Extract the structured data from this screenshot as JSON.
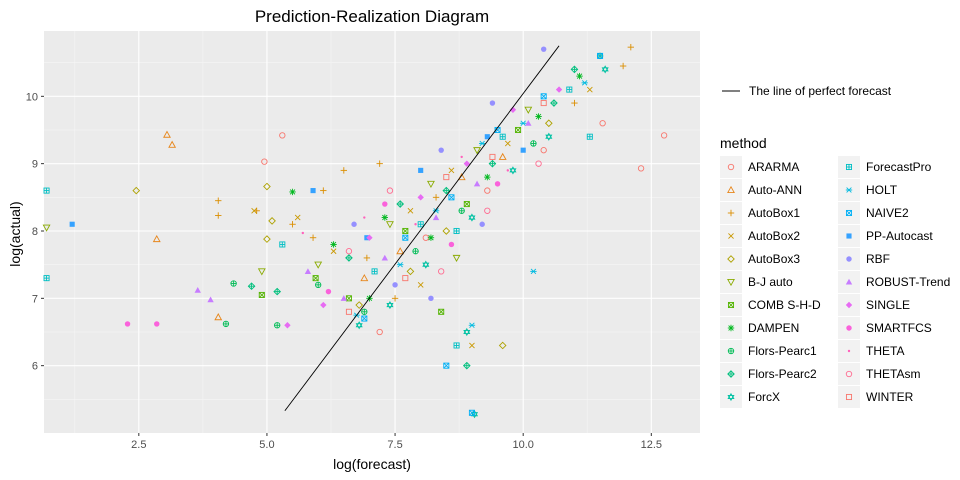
{
  "chart_data": {
    "type": "scatter",
    "title": "Prediction-Realization Diagram",
    "xlabel": "log(forecast)",
    "ylabel": "log(actual)",
    "xlim": [
      0.65,
      13.45
    ],
    "ylim": [
      5.0,
      10.97
    ],
    "xticks": [
      2.5,
      5.0,
      7.5,
      10.0,
      12.5
    ],
    "xtick_labels": [
      "2.5",
      "5.0",
      "7.5",
      "10.0",
      "12.5"
    ],
    "yticks": [
      6,
      7,
      8,
      9,
      10
    ],
    "ytick_labels": [
      "6",
      "7",
      "8",
      "9",
      "10"
    ],
    "grid": true,
    "background": "#ebebeb",
    "perfect_line": {
      "label": "The line of perfect forecast",
      "x": [
        5.35,
        10.7
      ],
      "y": [
        5.33,
        10.75
      ],
      "color": "#000000"
    },
    "legend": {
      "title": "method",
      "placement": "right",
      "columns": 2
    },
    "series": [
      {
        "name": "ARARMA",
        "color": "#F8766D",
        "shape": "circle-open",
        "points": [
          [
            5.3,
            9.42
          ],
          [
            4.95,
            9.03
          ],
          [
            12.75,
            9.42
          ],
          [
            12.3,
            8.93
          ],
          [
            11.55,
            9.6
          ],
          [
            9.3,
            8.6
          ],
          [
            8.1,
            7.9
          ],
          [
            7.2,
            6.5
          ],
          [
            10.4,
            9.2
          ]
        ]
      },
      {
        "name": "Auto-ANN",
        "color": "#E7861B",
        "shape": "triangle-open",
        "points": [
          [
            3.05,
            9.43
          ],
          [
            3.15,
            9.28
          ],
          [
            2.85,
            7.88
          ],
          [
            4.05,
            6.72
          ],
          [
            7.6,
            7.7
          ],
          [
            8.8,
            8.8
          ],
          [
            9.6,
            9.1
          ],
          [
            6.9,
            7.3
          ]
        ]
      },
      {
        "name": "AutoBox1",
        "color": "#DB8E00",
        "shape": "plus",
        "points": [
          [
            4.05,
            8.45
          ],
          [
            4.05,
            8.23
          ],
          [
            4.8,
            8.3
          ],
          [
            5.5,
            8.1
          ],
          [
            6.1,
            8.6
          ],
          [
            6.5,
            8.9
          ],
          [
            7.2,
            9.0
          ],
          [
            8.3,
            8.5
          ],
          [
            11.95,
            10.45
          ],
          [
            12.1,
            10.73
          ],
          [
            11.0,
            9.9
          ],
          [
            6.95,
            7.6
          ],
          [
            5.9,
            7.9
          ],
          [
            7.5,
            7.0
          ]
        ]
      },
      {
        "name": "AutoBox2",
        "color": "#C99800",
        "shape": "cross",
        "points": [
          [
            4.75,
            8.3
          ],
          [
            5.6,
            8.2
          ],
          [
            6.3,
            7.7
          ],
          [
            7.8,
            8.3
          ],
          [
            8.6,
            8.9
          ],
          [
            9.7,
            9.3
          ],
          [
            11.3,
            10.1
          ],
          [
            8.0,
            7.2
          ],
          [
            9.0,
            6.3
          ]
        ]
      },
      {
        "name": "AutoBox3",
        "color": "#AEA200",
        "shape": "diamond-open",
        "points": [
          [
            2.45,
            8.6
          ],
          [
            5.0,
            8.66
          ],
          [
            5.1,
            8.15
          ],
          [
            5.0,
            7.88
          ],
          [
            7.8,
            7.4
          ],
          [
            9.6,
            6.3
          ],
          [
            8.5,
            8.0
          ],
          [
            10.5,
            9.6
          ],
          [
            6.8,
            6.9
          ]
        ]
      },
      {
        "name": "B-J auto",
        "color": "#8AAB00",
        "shape": "triangle-down-open",
        "points": [
          [
            0.7,
            8.05
          ],
          [
            4.9,
            7.4
          ],
          [
            6.0,
            7.5
          ],
          [
            7.4,
            8.1
          ],
          [
            8.2,
            8.7
          ],
          [
            9.1,
            9.2
          ],
          [
            10.1,
            9.8
          ],
          [
            8.7,
            7.6
          ]
        ]
      },
      {
        "name": "COMB S-H-D",
        "color": "#53B400",
        "shape": "square-cross",
        "points": [
          [
            4.9,
            7.05
          ],
          [
            5.95,
            7.3
          ],
          [
            6.6,
            7.0
          ],
          [
            7.7,
            8.0
          ],
          [
            8.9,
            8.4
          ],
          [
            9.9,
            9.5
          ],
          [
            8.4,
            6.8
          ]
        ]
      },
      {
        "name": "DAMPEN",
        "color": "#00B81F",
        "shape": "asterisk",
        "points": [
          [
            5.5,
            8.58
          ],
          [
            6.3,
            7.8
          ],
          [
            7.3,
            8.2
          ],
          [
            8.2,
            7.9
          ],
          [
            9.3,
            8.8
          ],
          [
            10.3,
            9.7
          ],
          [
            11.1,
            10.3
          ],
          [
            7.0,
            7.0
          ]
        ]
      },
      {
        "name": "Flors-Pearc1",
        "color": "#00BC56",
        "shape": "circle-plus",
        "points": [
          [
            4.2,
            6.62
          ],
          [
            4.35,
            7.22
          ],
          [
            5.2,
            6.6
          ],
          [
            6.0,
            7.2
          ],
          [
            6.9,
            6.8
          ],
          [
            7.9,
            7.7
          ],
          [
            8.8,
            8.3
          ],
          [
            10.2,
            9.3
          ],
          [
            11.5,
            10.6
          ]
        ]
      },
      {
        "name": "Flors-Pearc2",
        "color": "#00BF7D",
        "shape": "diamond-plus",
        "points": [
          [
            4.7,
            7.18
          ],
          [
            5.2,
            7.1
          ],
          [
            6.6,
            7.6
          ],
          [
            7.6,
            8.4
          ],
          [
            8.5,
            8.6
          ],
          [
            9.4,
            9.0
          ],
          [
            10.6,
            9.9
          ],
          [
            11.0,
            10.4
          ],
          [
            8.9,
            6.0
          ]
        ]
      },
      {
        "name": "ForcX",
        "color": "#00C1A3",
        "shape": "star",
        "points": [
          [
            6.8,
            6.6
          ],
          [
            7.4,
            6.9
          ],
          [
            8.1,
            7.5
          ],
          [
            9.0,
            8.2
          ],
          [
            9.8,
            8.9
          ],
          [
            10.5,
            9.4
          ],
          [
            11.6,
            10.4
          ],
          [
            9.05,
            5.28
          ],
          [
            8.9,
            6.5
          ]
        ]
      },
      {
        "name": "ForecastPro",
        "color": "#00BFC4",
        "shape": "square-plus",
        "points": [
          [
            0.7,
            8.6
          ],
          [
            0.7,
            7.3
          ],
          [
            5.3,
            7.8
          ],
          [
            7.1,
            7.4
          ],
          [
            8.0,
            8.1
          ],
          [
            8.7,
            8.0
          ],
          [
            9.6,
            9.4
          ],
          [
            10.9,
            10.1
          ],
          [
            11.3,
            9.4
          ],
          [
            8.7,
            6.3
          ]
        ]
      },
      {
        "name": "HOLT",
        "color": "#00BAE0",
        "shape": "asterisk2",
        "points": [
          [
            6.75,
            6.75
          ],
          [
            7.6,
            7.5
          ],
          [
            8.3,
            8.3
          ],
          [
            9.2,
            9.3
          ],
          [
            10.0,
            9.6
          ],
          [
            10.2,
            7.4
          ],
          [
            11.2,
            10.2
          ],
          [
            9.0,
            6.6
          ]
        ]
      },
      {
        "name": "NAIVE2",
        "color": "#00B0F6",
        "shape": "square-x",
        "points": [
          [
            6.9,
            6.7
          ],
          [
            7.7,
            7.9
          ],
          [
            8.6,
            8.5
          ],
          [
            9.5,
            9.5
          ],
          [
            10.4,
            10.0
          ],
          [
            11.5,
            10.6
          ],
          [
            9.0,
            5.3
          ],
          [
            8.5,
            6.0
          ]
        ]
      },
      {
        "name": "PP-Autocast",
        "color": "#35A2FF",
        "shape": "square",
        "points": [
          [
            1.2,
            8.1
          ],
          [
            5.9,
            8.6
          ],
          [
            6.95,
            7.9
          ],
          [
            8.0,
            8.9
          ],
          [
            9.3,
            9.4
          ],
          [
            10.0,
            9.2
          ]
        ]
      },
      {
        "name": "RBF",
        "color": "#9590FF",
        "shape": "circle",
        "points": [
          [
            6.7,
            8.1
          ],
          [
            7.5,
            7.2
          ],
          [
            8.4,
            9.2
          ],
          [
            9.4,
            9.9
          ],
          [
            10.4,
            10.7
          ],
          [
            8.2,
            7.0
          ],
          [
            9.2,
            8.1
          ]
        ]
      },
      {
        "name": "ROBUST-Trend",
        "color": "#C77CFF",
        "shape": "triangle",
        "points": [
          [
            3.65,
            7.12
          ],
          [
            3.9,
            6.98
          ],
          [
            5.8,
            7.4
          ],
          [
            6.5,
            7.0
          ],
          [
            7.3,
            7.6
          ],
          [
            8.3,
            8.2
          ],
          [
            9.1,
            8.7
          ],
          [
            10.1,
            9.6
          ]
        ]
      },
      {
        "name": "SINGLE",
        "color": "#E76BF3",
        "shape": "diamond",
        "points": [
          [
            5.4,
            6.6
          ],
          [
            6.1,
            6.9
          ],
          [
            7.0,
            7.9
          ],
          [
            8.0,
            8.5
          ],
          [
            8.9,
            9.0
          ],
          [
            9.8,
            9.8
          ],
          [
            10.7,
            10.1
          ]
        ]
      },
      {
        "name": "SMARTFCS",
        "color": "#FA62DB",
        "shape": "circle",
        "points": [
          [
            2.28,
            6.62
          ],
          [
            2.85,
            6.62
          ],
          [
            6.2,
            7.1
          ],
          [
            7.3,
            8.4
          ],
          [
            8.6,
            7.8
          ],
          [
            9.5,
            8.7
          ]
        ]
      },
      {
        "name": "THETA",
        "color": "#FF62BC",
        "shape": "dot",
        "points": [
          [
            5.7,
            7.97
          ],
          [
            6.9,
            8.2
          ],
          [
            7.9,
            8.1
          ],
          [
            8.8,
            9.1
          ],
          [
            9.7,
            8.9
          ]
        ]
      },
      {
        "name": "THETAsm",
        "color": "#FF6C91",
        "shape": "circle-open",
        "points": [
          [
            6.6,
            7.7
          ],
          [
            7.4,
            8.6
          ],
          [
            8.4,
            7.4
          ],
          [
            9.3,
            8.3
          ],
          [
            10.3,
            9.0
          ]
        ]
      },
      {
        "name": "WINTER",
        "color": "#F8766D",
        "shape": "square-open",
        "points": [
          [
            6.6,
            6.8
          ],
          [
            7.7,
            7.3
          ],
          [
            8.5,
            8.8
          ],
          [
            9.4,
            9.1
          ],
          [
            10.4,
            9.9
          ]
        ]
      }
    ]
  }
}
